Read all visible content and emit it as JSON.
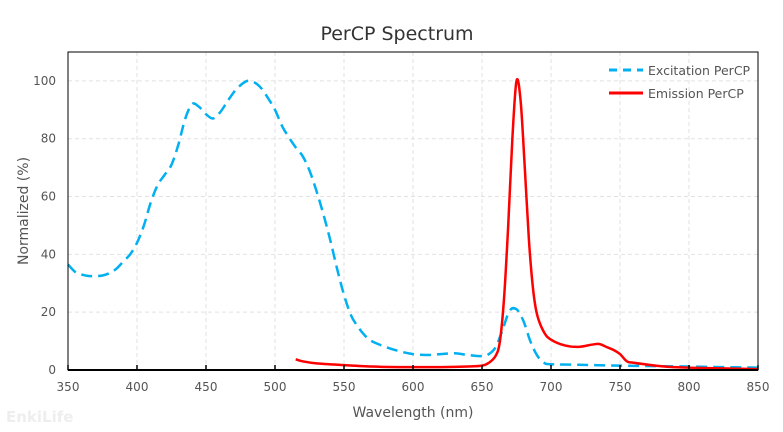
{
  "watermark": "EnkiLife",
  "chart_data": {
    "type": "line",
    "title": "PerCP  Spectrum",
    "xlabel": "Wavelength (nm)",
    "ylabel": "Normalized (%)",
    "xlim": [
      350,
      850
    ],
    "ylim": [
      0,
      110
    ],
    "xticks": [
      350,
      400,
      450,
      500,
      550,
      600,
      650,
      700,
      750,
      800,
      850
    ],
    "yticks": [
      0,
      20,
      40,
      60,
      80,
      100
    ],
    "grid": true,
    "legend_position": "top-right",
    "series": [
      {
        "name": "Excitation PerCP",
        "color": "#00b0f0",
        "style": "dashed",
        "x": [
          350,
          355,
          360,
          365,
          370,
          375,
          380,
          385,
          390,
          395,
          400,
          405,
          410,
          415,
          420,
          425,
          430,
          435,
          440,
          445,
          450,
          455,
          460,
          465,
          470,
          475,
          480,
          485,
          490,
          495,
          500,
          505,
          510,
          515,
          520,
          525,
          530,
          535,
          540,
          545,
          550,
          555,
          560,
          565,
          570,
          580,
          590,
          600,
          610,
          620,
          630,
          640,
          650,
          655,
          660,
          665,
          670,
          675,
          680,
          685,
          690,
          695,
          700,
          720,
          750,
          800,
          850
        ],
        "y": [
          36.5,
          34,
          33,
          32.5,
          32.5,
          32.7,
          33.5,
          35,
          37.5,
          40,
          44,
          50,
          58,
          64,
          67.5,
          71,
          78,
          87,
          92,
          91,
          88.5,
          87,
          89,
          92.5,
          96,
          98.5,
          100,
          99.5,
          97.5,
          94,
          90,
          84.5,
          80.5,
          77,
          74,
          69,
          62,
          54,
          45,
          35,
          26,
          19,
          15,
          12,
          10,
          8,
          6.5,
          5.5,
          5.2,
          5.5,
          5.8,
          5.2,
          4.8,
          5.5,
          8,
          14,
          20.5,
          21,
          17,
          10,
          5,
          2.5,
          2,
          1.8,
          1.5,
          1.2,
          0.8
        ]
      },
      {
        "name": "Emission PerCP",
        "color": "#ff0000",
        "style": "solid",
        "x": [
          515,
          520,
          530,
          550,
          570,
          590,
          620,
          640,
          650,
          655,
          660,
          663,
          666,
          669,
          672,
          675,
          678,
          681,
          684,
          687,
          690,
          695,
          700,
          710,
          720,
          730,
          735,
          740,
          745,
          750,
          755,
          760,
          780,
          800,
          850
        ],
        "y": [
          3.7,
          3,
          2.3,
          1.7,
          1.2,
          1,
          1,
          1.2,
          1.5,
          2.5,
          5,
          10,
          25,
          50,
          80,
          100,
          93,
          70,
          45,
          28,
          19,
          13,
          10.5,
          8.5,
          8,
          8.8,
          9,
          8,
          7,
          5.5,
          3,
          2.5,
          1.3,
          0.8,
          0.3
        ]
      }
    ]
  }
}
